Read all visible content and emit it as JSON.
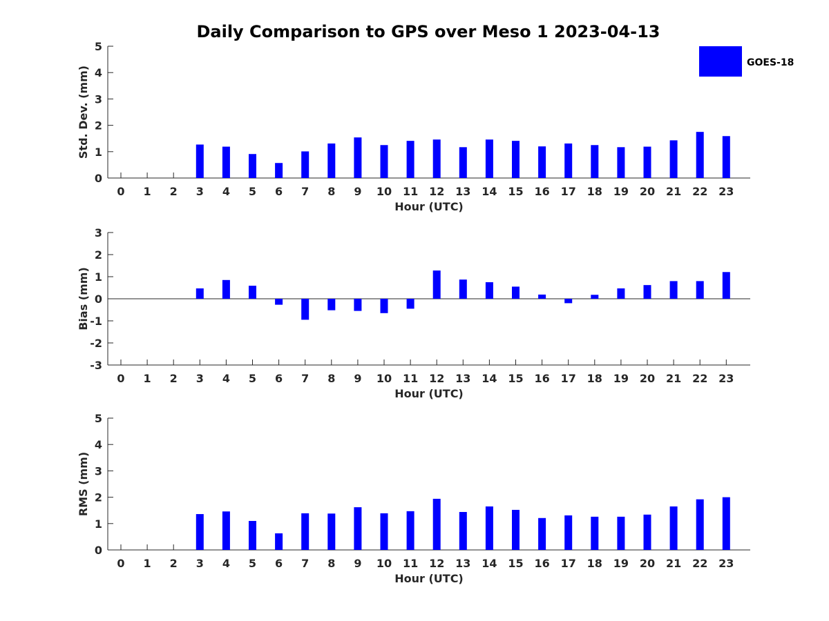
{
  "chart_data": {
    "type": "bar",
    "title": "Daily Comparison to GPS over Meso 1 2023-04-13",
    "legend": {
      "entries": [
        {
          "name": "GOES-18",
          "color": "#0000ff"
        }
      ],
      "placement": "top-right"
    },
    "categories": [
      "0",
      "1",
      "2",
      "3",
      "4",
      "5",
      "6",
      "7",
      "8",
      "9",
      "10",
      "11",
      "12",
      "13",
      "14",
      "15",
      "16",
      "17",
      "18",
      "19",
      "20",
      "21",
      "22",
      "23"
    ],
    "panels": [
      {
        "id": "std",
        "xlabel": "Hour (UTC)",
        "ylabel": "Std. Dev. (mm)",
        "ylim": [
          0,
          5
        ],
        "yticks": [
          "0",
          "1",
          "2",
          "3",
          "4",
          "5"
        ],
        "series": [
          {
            "name": "GOES-18",
            "color": "#0000ff",
            "values": [
              null,
              null,
              null,
              1.27,
              1.19,
              0.91,
              0.57,
              1.01,
              1.31,
              1.54,
              1.25,
              1.41,
              1.46,
              1.17,
              1.46,
              1.41,
              1.2,
              1.31,
              1.25,
              1.17,
              1.19,
              1.43,
              1.75,
              1.59
            ]
          }
        ]
      },
      {
        "id": "bias",
        "xlabel": "Hour (UTC)",
        "ylabel": "Bias (mm)",
        "ylim": [
          -3,
          3
        ],
        "yticks": [
          "-3",
          "-2",
          "-1",
          "0",
          "1",
          "2",
          "3"
        ],
        "series": [
          {
            "name": "GOES-18",
            "color": "#0000ff",
            "values": [
              null,
              null,
              null,
              0.47,
              0.85,
              0.59,
              -0.27,
              -0.95,
              -0.52,
              -0.55,
              -0.65,
              -0.45,
              1.28,
              0.87,
              0.75,
              0.55,
              0.19,
              -0.2,
              0.18,
              0.47,
              0.62,
              0.8,
              0.8,
              1.21
            ]
          }
        ]
      },
      {
        "id": "rms",
        "xlabel": "Hour (UTC)",
        "ylabel": "RMS (mm)",
        "ylim": [
          0,
          5
        ],
        "yticks": [
          "0",
          "1",
          "2",
          "3",
          "4",
          "5"
        ],
        "series": [
          {
            "name": "GOES-18",
            "color": "#0000ff",
            "values": [
              null,
              null,
              null,
              1.36,
              1.46,
              1.1,
              0.63,
              1.39,
              1.38,
              1.62,
              1.39,
              1.47,
              1.94,
              1.44,
              1.65,
              1.52,
              1.21,
              1.31,
              1.26,
              1.26,
              1.34,
              1.65,
              1.92,
              2.0
            ]
          }
        ]
      }
    ]
  }
}
